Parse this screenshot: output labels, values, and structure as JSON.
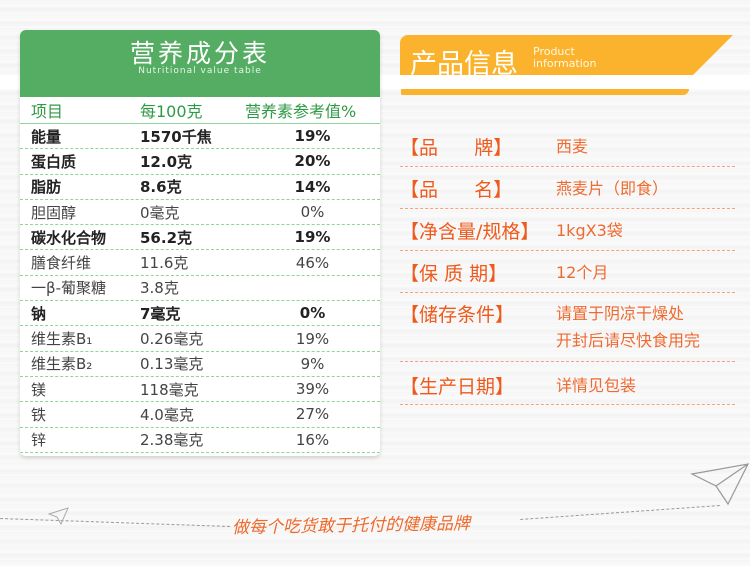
{
  "nutrition": {
    "title": "营养成分表",
    "subtitle": "Nutritional value table",
    "headers": [
      "项目",
      "每100克",
      "营养素参考值%"
    ],
    "rows": [
      {
        "name": "能量",
        "amount": "1570千焦",
        "nrv": "19%",
        "bold": true
      },
      {
        "name": "蛋白质",
        "amount": "12.0克",
        "nrv": "20%",
        "bold": true
      },
      {
        "name": "脂肪",
        "amount": "8.6克",
        "nrv": "14%",
        "bold": true
      },
      {
        "name": "胆固醇",
        "amount": "0毫克",
        "nrv": "0%",
        "bold": false
      },
      {
        "name": "碳水化合物",
        "amount": "56.2克",
        "nrv": "19%",
        "bold": true
      },
      {
        "name": "膳食纤维",
        "amount": "11.6克",
        "nrv": "46%",
        "bold": false
      },
      {
        "name": "一β-葡聚糖",
        "amount": "3.8克",
        "nrv": "",
        "bold": false
      },
      {
        "name": "钠",
        "amount": "7毫克",
        "nrv": "0%",
        "bold": true
      },
      {
        "name": "维生素B₁",
        "amount": "0.26毫克",
        "nrv": "19%",
        "bold": false
      },
      {
        "name": "维生素B₂",
        "amount": "0.13毫克",
        "nrv": "9%",
        "bold": false
      },
      {
        "name": "镁",
        "amount": "118毫克",
        "nrv": "39%",
        "bold": false
      },
      {
        "name": "铁",
        "amount": "4.0毫克",
        "nrv": "27%",
        "bold": false
      },
      {
        "name": "锌",
        "amount": "2.38毫克",
        "nrv": "16%",
        "bold": false
      }
    ]
  },
  "product": {
    "title": "产品信息",
    "subtitle_line1": "Product",
    "subtitle_line2": "information",
    "items": [
      {
        "label": "【品      牌】",
        "value": "西麦"
      },
      {
        "label": "【品      名】",
        "value": "燕麦片（即食）"
      },
      {
        "label": "【净含量/规格】",
        "value": "1kgX3袋"
      },
      {
        "label": "【保 质 期】",
        "value": "12个月"
      },
      {
        "label": "【储存条件】",
        "value": "请置于阴凉干燥处",
        "value2": "开封后请尽快食用完"
      },
      {
        "label": "【生产日期】",
        "value": "详情见包装"
      }
    ]
  },
  "slogan": "做每个吃货敢于托付的健康品牌",
  "colors": {
    "green": "#54ad62",
    "orange_banner": "#fbb32d",
    "orange_text": "#ef5a1c"
  }
}
